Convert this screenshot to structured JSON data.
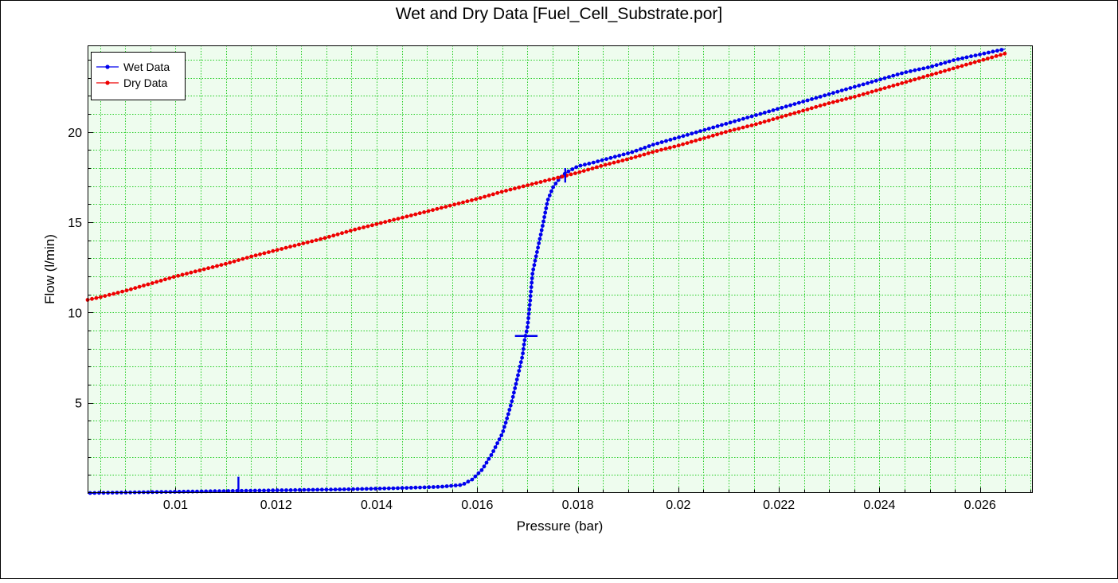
{
  "chart_data": {
    "type": "line",
    "title": "Wet and Dry Data [Fuel_Cell_Substrate.por]",
    "xlabel": "Pressure (bar)",
    "ylabel": "Flow (l/min)",
    "xlim": [
      0.00825,
      0.02705
    ],
    "ylim": [
      0,
      24.8
    ],
    "x_ticks": [
      0.01,
      0.012,
      0.014,
      0.016,
      0.018,
      0.02,
      0.022,
      0.024,
      0.026
    ],
    "x_tick_labels": [
      "0.01",
      "0.012",
      "0.014",
      "0.016",
      "0.018",
      "0.02",
      "0.022",
      "0.024",
      "0.026"
    ],
    "y_ticks": [
      5,
      10,
      15,
      20
    ],
    "y_tick_labels": [
      "5",
      "10",
      "15",
      "20"
    ],
    "x_minor_step": 0.0005,
    "y_minor_step": 1,
    "grid": true,
    "legend_position": "top-left",
    "colors": {
      "wet": "#0000ee",
      "dry": "#ee0000",
      "grid": "#22cc22",
      "plot_bg": "#eefcee"
    },
    "series": [
      {
        "name": "Wet Data",
        "color": "#0000ee",
        "x": [
          0.0083,
          0.0088,
          0.0093,
          0.0098,
          0.0103,
          0.0108,
          0.0113,
          0.0118,
          0.0123,
          0.0128,
          0.0133,
          0.0138,
          0.0143,
          0.0148,
          0.0153,
          0.0157,
          0.0159,
          0.0161,
          0.0163,
          0.0165,
          0.0166,
          0.0167,
          0.0168,
          0.0169,
          0.01695,
          0.017,
          0.01705,
          0.0171,
          0.0172,
          0.0173,
          0.0174,
          0.0175,
          0.0176,
          0.0177,
          0.0178,
          0.018,
          0.0183,
          0.0187,
          0.0191,
          0.0195,
          0.02,
          0.0205,
          0.021,
          0.0215,
          0.022,
          0.0225,
          0.023,
          0.0235,
          0.024,
          0.0245,
          0.025,
          0.0255,
          0.026,
          0.0265
        ],
        "y": [
          0.0,
          0.02,
          0.04,
          0.06,
          0.08,
          0.1,
          0.12,
          0.14,
          0.16,
          0.18,
          0.2,
          0.23,
          0.26,
          0.3,
          0.35,
          0.45,
          0.75,
          1.3,
          2.2,
          3.3,
          4.2,
          5.2,
          6.4,
          7.6,
          8.6,
          9.2,
          10.6,
          12.2,
          13.5,
          14.8,
          16.2,
          16.9,
          17.3,
          17.6,
          17.8,
          18.1,
          18.3,
          18.6,
          18.9,
          19.3,
          19.7,
          20.1,
          20.5,
          20.9,
          21.3,
          21.7,
          22.1,
          22.5,
          22.9,
          23.3,
          23.6,
          24.0,
          24.3,
          24.6
        ]
      },
      {
        "name": "Dry Data",
        "color": "#ee0000",
        "x": [
          0.00825,
          0.0085,
          0.009,
          0.0095,
          0.01,
          0.0105,
          0.011,
          0.0115,
          0.012,
          0.0125,
          0.013,
          0.0135,
          0.014,
          0.0145,
          0.015,
          0.0155,
          0.016,
          0.0165,
          0.017,
          0.0175,
          0.018,
          0.0185,
          0.019,
          0.0195,
          0.02,
          0.0205,
          0.021,
          0.0215,
          0.022,
          0.0225,
          0.023,
          0.0235,
          0.024,
          0.0245,
          0.025,
          0.0255,
          0.026,
          0.0265
        ],
        "y": [
          10.7,
          10.85,
          11.2,
          11.6,
          12.0,
          12.35,
          12.7,
          13.1,
          13.45,
          13.8,
          14.15,
          14.55,
          14.9,
          15.25,
          15.6,
          15.95,
          16.3,
          16.7,
          17.05,
          17.4,
          17.75,
          18.15,
          18.5,
          18.9,
          19.25,
          19.65,
          20.05,
          20.4,
          20.8,
          21.2,
          21.6,
          21.95,
          22.35,
          22.75,
          23.15,
          23.55,
          23.95,
          24.35
        ]
      }
    ],
    "markers": [
      {
        "series": "Wet Data",
        "kind": "vertical",
        "x": 0.01125,
        "y": [
          0,
          0.9
        ]
      },
      {
        "series": "Wet Data",
        "kind": "vertical",
        "x": 0.01775,
        "y": [
          17.2,
          18.0
        ]
      },
      {
        "series": "Wet Data",
        "kind": "horizontal",
        "y": 8.7,
        "x": [
          0.01675,
          0.0172
        ]
      }
    ]
  }
}
